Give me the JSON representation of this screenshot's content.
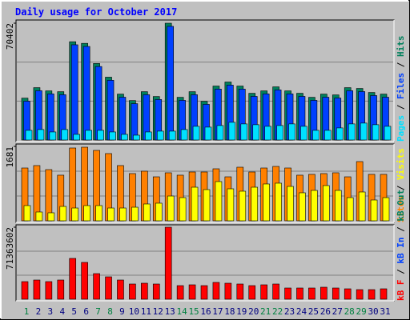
{
  "title": "Daily usage for October 2017",
  "chart_data": [
    {
      "type": "bar",
      "ylim": [
        0,
        70402
      ],
      "yticks": [
        70402
      ],
      "legend_separator": " / ",
      "legend_reverse": true,
      "series": [
        {
          "name": "Hits",
          "color": "#00805c",
          "values": [
            25250,
            31560,
            29620,
            29130,
            59240,
            58260,
            46120,
            37870,
            27670,
            23790,
            29130,
            26220,
            70402,
            25730,
            29130,
            23300,
            32530,
            34960,
            32530,
            28160,
            29620,
            32040,
            29620,
            28160,
            25730,
            27670,
            27190,
            31560,
            31070,
            28650,
            27670
          ]
        },
        {
          "name": "Files",
          "color": "#0040ff",
          "values": [
            23400,
            29700,
            27800,
            27300,
            57400,
            56400,
            44300,
            36000,
            25800,
            21900,
            27300,
            24400,
            68500,
            23900,
            27300,
            21500,
            30700,
            33100,
            30700,
            26300,
            27800,
            30200,
            27800,
            26300,
            23900,
            25800,
            25300,
            29700,
            29200,
            26800,
            25800
          ]
        },
        {
          "name": "Pages",
          "color": "#00e0ff",
          "values": [
            5820,
            6310,
            4850,
            6310,
            3400,
            5820,
            5820,
            4850,
            3400,
            2910,
            4850,
            5340,
            5340,
            6310,
            8250,
            7760,
            8730,
            10670,
            9700,
            9220,
            8250,
            8730,
            9700,
            8250,
            5820,
            5820,
            7280,
            9700,
            10190,
            9220,
            8250
          ]
        }
      ]
    },
    {
      "type": "bar",
      "ylim": [
        0,
        1681
      ],
      "yticks": [
        1681
      ],
      "legend_separator": " / ",
      "series": [
        {
          "name": "Sites",
          "color": "#ff8000",
          "values": [
            1193,
            1248,
            1157,
            1031,
            1645,
            1663,
            1591,
            1519,
            1248,
            1067,
            1121,
            994,
            1085,
            1031,
            1103,
            1103,
            1175,
            994,
            1211,
            1103,
            1193,
            1229,
            1193,
            1031,
            1049,
            1067,
            1085,
            994,
            1338,
            1049,
            1049
          ]
        },
        {
          "name": "Visits",
          "color": "#ffff00",
          "values": [
            344,
            199,
            181,
            325,
            289,
            344,
            344,
            289,
            289,
            307,
            380,
            398,
            560,
            524,
            759,
            705,
            886,
            723,
            669,
            759,
            832,
            850,
            777,
            633,
            687,
            796,
            687,
            524,
            651,
            470,
            524
          ]
        }
      ]
    },
    {
      "type": "bar",
      "ylim": [
        0,
        71363602
      ],
      "yticks": [
        71363602
      ],
      "legend_separator": " / ",
      "series": [
        {
          "name": "kB F",
          "color": "#ff0000",
          "values": [
            17444000,
            19030000,
            17444000,
            19030000,
            40439000,
            36475000,
            25374000,
            22202000,
            19030000,
            15066000,
            15859000,
            15066000,
            71363602,
            13480000,
            14273000,
            13480000,
            16652000,
            15859000,
            15066000,
            13480000,
            14273000,
            15066000,
            11101000,
            11101000,
            11101000,
            11894000,
            11101000,
            10308000,
            9515000,
            9515000,
            10308000
          ]
        }
      ],
      "extra_legend": [
        {
          "name": "kB In",
          "color": "#0040ff"
        },
        {
          "name": "kB Out",
          "color": "#00805c"
        }
      ],
      "categories": [
        1,
        2,
        3,
        4,
        5,
        6,
        7,
        8,
        9,
        10,
        11,
        12,
        13,
        14,
        15,
        16,
        17,
        18,
        19,
        20,
        21,
        22,
        23,
        24,
        25,
        26,
        27,
        28,
        29,
        30,
        31
      ],
      "category_colors": [
        "#008040",
        "#000080",
        "#000080",
        "#000080",
        "#000080",
        "#000080",
        "#008040",
        "#008040",
        "#000080",
        "#000080",
        "#000080",
        "#000080",
        "#000080",
        "#008040",
        "#008040",
        "#000080",
        "#000080",
        "#000080",
        "#000080",
        "#000080",
        "#008040",
        "#008040",
        "#000080",
        "#000080",
        "#000080",
        "#000080",
        "#000080",
        "#008040",
        "#008040",
        "#000080",
        "#000080"
      ]
    }
  ]
}
